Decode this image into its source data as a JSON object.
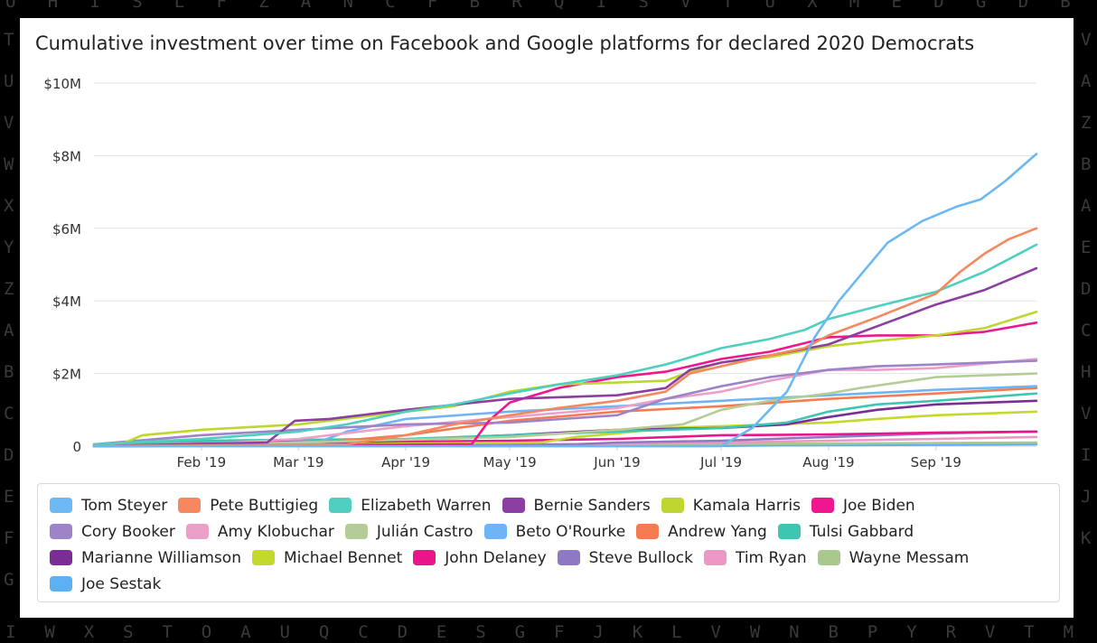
{
  "background_letters": {
    "top": "O H I S L F Z A N C F B R Q I S V T U X M E D G D B",
    "bottom": "I W X S T O A U Q C D E S G F J K L V W N B P Y R V T M",
    "left": "T U V W X Y Z A B C D E F G",
    "right": "V A Z B A E D C H V I J K"
  },
  "chart_data": {
    "type": "line",
    "title": "Cumulative investment over time on Facebook and Google platforms for declared 2020 Democrats",
    "xlabel": "",
    "ylabel": "",
    "x_start": "2019-01-01",
    "x_end": "2019-09-30",
    "xticks": [
      {
        "date": "2019-02-01",
        "label": "Feb '19"
      },
      {
        "date": "2019-03-01",
        "label": "Mar '19"
      },
      {
        "date": "2019-04-01",
        "label": "Apr '19"
      },
      {
        "date": "2019-05-01",
        "label": "May '19"
      },
      {
        "date": "2019-06-01",
        "label": "Jun '19"
      },
      {
        "date": "2019-07-01",
        "label": "Jul '19"
      },
      {
        "date": "2019-08-01",
        "label": "Aug '19"
      },
      {
        "date": "2019-09-01",
        "label": "Sep '19"
      }
    ],
    "ylim": [
      0,
      10
    ],
    "yticks": [
      {
        "value": 0,
        "label": "0"
      },
      {
        "value": 2,
        "label": "$2M"
      },
      {
        "value": 4,
        "label": "$4M"
      },
      {
        "value": 6,
        "label": "$6M"
      },
      {
        "value": 8,
        "label": "$8M"
      },
      {
        "value": 10,
        "label": "$10M"
      }
    ],
    "grid": true,
    "legend_position": "bottom",
    "series": [
      {
        "name": "Tom Steyer",
        "color": "#6CB8F2",
        "points": [
          [
            "2019-01-01",
            0
          ],
          [
            "2019-07-01",
            0
          ],
          [
            "2019-07-10",
            0.5
          ],
          [
            "2019-07-20",
            1.5
          ],
          [
            "2019-07-28",
            3
          ],
          [
            "2019-08-04",
            4
          ],
          [
            "2019-08-18",
            5.6
          ],
          [
            "2019-08-28",
            6.2
          ],
          [
            "2019-09-07",
            6.6
          ],
          [
            "2019-09-14",
            6.8
          ],
          [
            "2019-09-21",
            7.3
          ],
          [
            "2019-09-30",
            8.05
          ]
        ]
      },
      {
        "name": "Pete Buttigieg",
        "color": "#F5885E",
        "points": [
          [
            "2019-01-01",
            0
          ],
          [
            "2019-03-15",
            0.05
          ],
          [
            "2019-04-01",
            0.3
          ],
          [
            "2019-04-15",
            0.6
          ],
          [
            "2019-05-01",
            0.85
          ],
          [
            "2019-05-15",
            1.05
          ],
          [
            "2019-06-01",
            1.25
          ],
          [
            "2019-06-15",
            1.5
          ],
          [
            "2019-06-22",
            2.0
          ],
          [
            "2019-07-01",
            2.2
          ],
          [
            "2019-07-15",
            2.5
          ],
          [
            "2019-07-25",
            2.7
          ],
          [
            "2019-08-01",
            3.05
          ],
          [
            "2019-08-15",
            3.55
          ],
          [
            "2019-09-01",
            4.2
          ],
          [
            "2019-09-08",
            4.8
          ],
          [
            "2019-09-15",
            5.3
          ],
          [
            "2019-09-22",
            5.7
          ],
          [
            "2019-09-30",
            6.0
          ]
        ]
      },
      {
        "name": "Elizabeth Warren",
        "color": "#4ECFBF",
        "points": [
          [
            "2019-01-01",
            0.05
          ],
          [
            "2019-02-01",
            0.2
          ],
          [
            "2019-03-01",
            0.4
          ],
          [
            "2019-03-15",
            0.6
          ],
          [
            "2019-04-01",
            0.95
          ],
          [
            "2019-04-15",
            1.15
          ],
          [
            "2019-05-01",
            1.45
          ],
          [
            "2019-05-15",
            1.7
          ],
          [
            "2019-06-01",
            1.95
          ],
          [
            "2019-06-15",
            2.25
          ],
          [
            "2019-07-01",
            2.7
          ],
          [
            "2019-07-15",
            2.95
          ],
          [
            "2019-07-25",
            3.2
          ],
          [
            "2019-08-01",
            3.5
          ],
          [
            "2019-08-15",
            3.85
          ],
          [
            "2019-09-01",
            4.25
          ],
          [
            "2019-09-15",
            4.8
          ],
          [
            "2019-09-30",
            5.55
          ]
        ]
      },
      {
        "name": "Bernie Sanders",
        "color": "#8B3FA0",
        "points": [
          [
            "2019-01-01",
            0
          ],
          [
            "2019-02-20",
            0.1
          ],
          [
            "2019-02-28",
            0.7
          ],
          [
            "2019-03-10",
            0.75
          ],
          [
            "2019-04-01",
            1.0
          ],
          [
            "2019-05-01",
            1.3
          ],
          [
            "2019-06-01",
            1.4
          ],
          [
            "2019-06-15",
            1.6
          ],
          [
            "2019-06-22",
            2.1
          ],
          [
            "2019-07-01",
            2.3
          ],
          [
            "2019-07-15",
            2.5
          ],
          [
            "2019-08-01",
            2.8
          ],
          [
            "2019-08-15",
            3.3
          ],
          [
            "2019-09-01",
            3.9
          ],
          [
            "2019-09-15",
            4.3
          ],
          [
            "2019-09-30",
            4.9
          ]
        ]
      },
      {
        "name": "Kamala Harris",
        "color": "#BFD630",
        "points": [
          [
            "2019-01-01",
            0
          ],
          [
            "2019-01-10",
            0.1
          ],
          [
            "2019-01-15",
            0.3
          ],
          [
            "2019-02-01",
            0.45
          ],
          [
            "2019-03-01",
            0.6
          ],
          [
            "2019-04-01",
            0.95
          ],
          [
            "2019-04-15",
            1.1
          ],
          [
            "2019-05-01",
            1.5
          ],
          [
            "2019-05-15",
            1.7
          ],
          [
            "2019-06-01",
            1.75
          ],
          [
            "2019-06-15",
            1.8
          ],
          [
            "2019-06-22",
            2.05
          ],
          [
            "2019-07-01",
            2.3
          ],
          [
            "2019-07-15",
            2.45
          ],
          [
            "2019-08-01",
            2.75
          ],
          [
            "2019-08-15",
            2.9
          ],
          [
            "2019-09-01",
            3.05
          ],
          [
            "2019-09-15",
            3.25
          ],
          [
            "2019-09-30",
            3.7
          ]
        ]
      },
      {
        "name": "Joe Biden",
        "color": "#F0168F",
        "points": [
          [
            "2019-01-01",
            0
          ],
          [
            "2019-04-20",
            0.05
          ],
          [
            "2019-04-25",
            0.7
          ],
          [
            "2019-05-01",
            1.2
          ],
          [
            "2019-05-15",
            1.6
          ],
          [
            "2019-06-01",
            1.9
          ],
          [
            "2019-06-15",
            2.05
          ],
          [
            "2019-07-01",
            2.4
          ],
          [
            "2019-07-15",
            2.6
          ],
          [
            "2019-08-01",
            3.0
          ],
          [
            "2019-08-15",
            3.05
          ],
          [
            "2019-09-01",
            3.05
          ],
          [
            "2019-09-15",
            3.15
          ],
          [
            "2019-09-30",
            3.4
          ]
        ]
      },
      {
        "name": "Cory Booker",
        "color": "#9D83C8",
        "points": [
          [
            "2019-01-01",
            0.05
          ],
          [
            "2019-02-01",
            0.3
          ],
          [
            "2019-03-01",
            0.45
          ],
          [
            "2019-04-01",
            0.6
          ],
          [
            "2019-05-01",
            0.65
          ],
          [
            "2019-06-01",
            0.85
          ],
          [
            "2019-06-15",
            1.3
          ],
          [
            "2019-07-01",
            1.65
          ],
          [
            "2019-07-15",
            1.9
          ],
          [
            "2019-08-01",
            2.1
          ],
          [
            "2019-08-15",
            2.2
          ],
          [
            "2019-09-01",
            2.25
          ],
          [
            "2019-09-30",
            2.35
          ]
        ]
      },
      {
        "name": "Amy Klobuchar",
        "color": "#EBA0C9",
        "points": [
          [
            "2019-01-01",
            0
          ],
          [
            "2019-02-10",
            0.1
          ],
          [
            "2019-03-01",
            0.2
          ],
          [
            "2019-04-01",
            0.55
          ],
          [
            "2019-05-01",
            0.8
          ],
          [
            "2019-06-01",
            1.05
          ],
          [
            "2019-06-15",
            1.3
          ],
          [
            "2019-07-01",
            1.5
          ],
          [
            "2019-07-15",
            1.8
          ],
          [
            "2019-08-01",
            2.1
          ],
          [
            "2019-08-15",
            2.1
          ],
          [
            "2019-09-01",
            2.15
          ],
          [
            "2019-09-30",
            2.4
          ]
        ]
      },
      {
        "name": "Julián Castro",
        "color": "#B4CC96",
        "points": [
          [
            "2019-01-01",
            0
          ],
          [
            "2019-03-01",
            0.1
          ],
          [
            "2019-05-01",
            0.25
          ],
          [
            "2019-06-01",
            0.45
          ],
          [
            "2019-06-20",
            0.6
          ],
          [
            "2019-07-01",
            1.0
          ],
          [
            "2019-07-15",
            1.25
          ],
          [
            "2019-08-01",
            1.45
          ],
          [
            "2019-08-10",
            1.6
          ],
          [
            "2019-09-01",
            1.9
          ],
          [
            "2019-09-30",
            2.0
          ]
        ]
      },
      {
        "name": "Beto O'Rourke",
        "color": "#6FB4F4",
        "points": [
          [
            "2019-01-01",
            0
          ],
          [
            "2019-03-05",
            0.05
          ],
          [
            "2019-03-15",
            0.4
          ],
          [
            "2019-04-01",
            0.75
          ],
          [
            "2019-05-01",
            0.95
          ],
          [
            "2019-06-01",
            1.1
          ],
          [
            "2019-07-01",
            1.25
          ],
          [
            "2019-08-01",
            1.4
          ],
          [
            "2019-09-01",
            1.55
          ],
          [
            "2019-09-30",
            1.65
          ]
        ]
      },
      {
        "name": "Andrew Yang",
        "color": "#F47B52",
        "points": [
          [
            "2019-01-01",
            0
          ],
          [
            "2019-03-01",
            0.05
          ],
          [
            "2019-04-01",
            0.3
          ],
          [
            "2019-05-01",
            0.7
          ],
          [
            "2019-06-01",
            0.95
          ],
          [
            "2019-07-01",
            1.1
          ],
          [
            "2019-08-01",
            1.3
          ],
          [
            "2019-09-01",
            1.45
          ],
          [
            "2019-09-30",
            1.6
          ]
        ]
      },
      {
        "name": "Tulsi Gabbard",
        "color": "#3FC6B2",
        "points": [
          [
            "2019-01-01",
            0
          ],
          [
            "2019-02-01",
            0.15
          ],
          [
            "2019-04-01",
            0.2
          ],
          [
            "2019-05-01",
            0.3
          ],
          [
            "2019-06-01",
            0.4
          ],
          [
            "2019-07-01",
            0.5
          ],
          [
            "2019-07-20",
            0.65
          ],
          [
            "2019-08-01",
            0.95
          ],
          [
            "2019-08-15",
            1.15
          ],
          [
            "2019-09-01",
            1.25
          ],
          [
            "2019-09-30",
            1.45
          ]
        ]
      },
      {
        "name": "Marianne Williamson",
        "color": "#7A2E95",
        "points": [
          [
            "2019-01-01",
            0
          ],
          [
            "2019-03-01",
            0.05
          ],
          [
            "2019-05-01",
            0.3
          ],
          [
            "2019-06-01",
            0.45
          ],
          [
            "2019-07-01",
            0.5
          ],
          [
            "2019-07-20",
            0.6
          ],
          [
            "2019-08-01",
            0.8
          ],
          [
            "2019-08-15",
            1.0
          ],
          [
            "2019-09-01",
            1.15
          ],
          [
            "2019-09-30",
            1.25
          ]
        ]
      },
      {
        "name": "Michael Bennet",
        "color": "#C5D82E",
        "points": [
          [
            "2019-01-01",
            0
          ],
          [
            "2019-05-10",
            0.1
          ],
          [
            "2019-05-20",
            0.25
          ],
          [
            "2019-06-01",
            0.35
          ],
          [
            "2019-06-15",
            0.5
          ],
          [
            "2019-07-01",
            0.55
          ],
          [
            "2019-08-01",
            0.65
          ],
          [
            "2019-08-15",
            0.75
          ],
          [
            "2019-09-01",
            0.85
          ],
          [
            "2019-09-30",
            0.95
          ]
        ]
      },
      {
        "name": "John Delaney",
        "color": "#E8168A",
        "points": [
          [
            "2019-01-01",
            0.05
          ],
          [
            "2019-02-01",
            0.1
          ],
          [
            "2019-04-01",
            0.12
          ],
          [
            "2019-05-01",
            0.15
          ],
          [
            "2019-06-01",
            0.2
          ],
          [
            "2019-07-01",
            0.3
          ],
          [
            "2019-08-01",
            0.32
          ],
          [
            "2019-09-01",
            0.37
          ],
          [
            "2019-09-30",
            0.4
          ]
        ]
      },
      {
        "name": "Steve Bullock",
        "color": "#9079C4",
        "points": [
          [
            "2019-01-01",
            0
          ],
          [
            "2019-05-20",
            0.05
          ],
          [
            "2019-06-01",
            0.1
          ],
          [
            "2019-07-01",
            0.15
          ],
          [
            "2019-08-01",
            0.25
          ],
          [
            "2019-09-01",
            0.35
          ],
          [
            "2019-09-30",
            0.4
          ]
        ]
      },
      {
        "name": "Tim Ryan",
        "color": "#EE96C6",
        "points": [
          [
            "2019-01-01",
            0
          ],
          [
            "2019-04-15",
            0.02
          ],
          [
            "2019-05-15",
            0.05
          ],
          [
            "2019-07-01",
            0.1
          ],
          [
            "2019-08-01",
            0.15
          ],
          [
            "2019-09-01",
            0.2
          ],
          [
            "2019-09-30",
            0.25
          ]
        ]
      },
      {
        "name": "Wayne Messam",
        "color": "#A9C98C",
        "points": [
          [
            "2019-01-01",
            0
          ],
          [
            "2019-04-01",
            0.02
          ],
          [
            "2019-06-01",
            0.05
          ],
          [
            "2019-08-01",
            0.07
          ],
          [
            "2019-09-30",
            0.1
          ]
        ]
      },
      {
        "name": "Joe Sestak",
        "color": "#5DB0F2",
        "points": [
          [
            "2019-01-01",
            0
          ],
          [
            "2019-06-25",
            0
          ],
          [
            "2019-07-15",
            0.02
          ],
          [
            "2019-09-30",
            0.05
          ]
        ]
      }
    ]
  }
}
